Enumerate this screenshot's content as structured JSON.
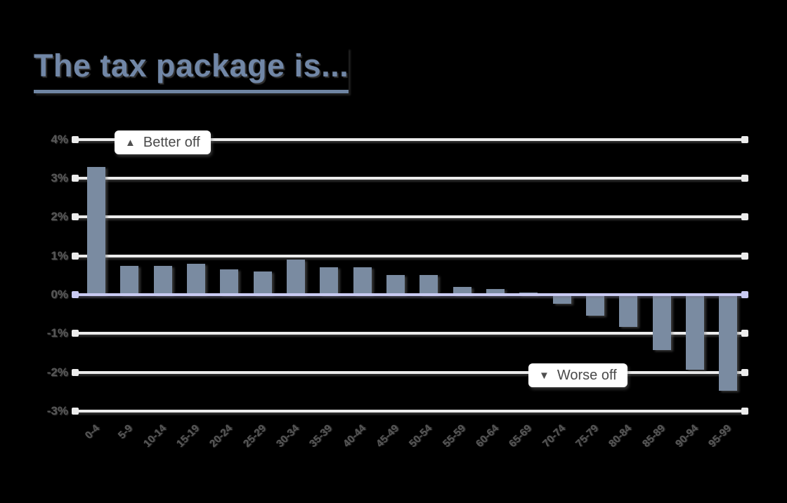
{
  "title": "The tax package is...",
  "annotations": {
    "better": {
      "symbol": "▲",
      "text": "Better off"
    },
    "worse": {
      "symbol": "▼",
      "text": "Worse off"
    }
  },
  "y_axis": {
    "tick_labels": [
      "4%",
      "3%",
      "2%",
      "1%",
      "0%",
      "-1%",
      "-2%",
      "-3%"
    ],
    "tick_values": [
      4,
      3,
      2,
      1,
      0,
      -1,
      -2,
      -3
    ]
  },
  "chart_data": {
    "type": "bar",
    "title": "The tax package is...",
    "xlabel": "",
    "ylabel": "",
    "categories": [
      "0-4",
      "5-9",
      "10-14",
      "15-19",
      "20-24",
      "25-29",
      "30-34",
      "35-39",
      "40-44",
      "45-49",
      "50-54",
      "55-59",
      "60-64",
      "65-69",
      "70-74",
      "75-79",
      "80-84",
      "85-89",
      "90-94",
      "95-99"
    ],
    "values": [
      3.3,
      0.75,
      0.75,
      0.8,
      0.65,
      0.6,
      0.9,
      0.7,
      0.7,
      0.5,
      0.5,
      0.2,
      0.15,
      0.05,
      -0.2,
      -0.5,
      -0.8,
      -1.4,
      -1.9,
      -2.45
    ],
    "ylim": [
      -3.5,
      4.5
    ],
    "yticks": [
      "4%",
      "3%",
      "2%",
      "1%",
      "0%",
      "-1%",
      "-2%",
      "-3%"
    ],
    "grid": "horizontal",
    "legend": "none",
    "annotations": [
      "▲ Better off",
      "▼ Worse off"
    ]
  },
  "colors": {
    "background": "#000000",
    "bar": "#7a8ba1",
    "gridline": "#ececec",
    "zero_line": "#c9caf2",
    "title": "#7187a7",
    "axis_text": "#575757",
    "annotation_text": "#4a4a4a",
    "annotation_background": "#ffffff"
  }
}
